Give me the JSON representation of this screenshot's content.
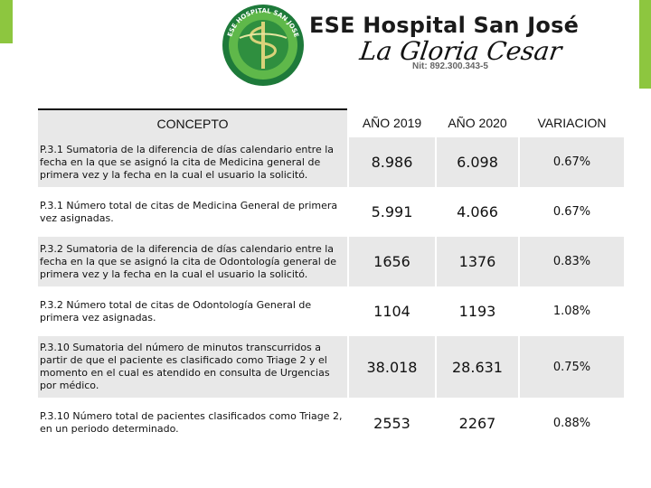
{
  "header": {
    "brand_title": "ESE Hospital San José",
    "brand_subtitle": "La Gloria Cesar",
    "nit": "Nit: 892.300.343-5",
    "seal_text": "ESE HOSPITAL SAN JOSE"
  },
  "colors": {
    "accent_green": "#8dc63f",
    "row_gray": "#e8e8e8"
  },
  "table": {
    "headers": {
      "concept": "CONCEPTO",
      "y2019": "AÑO 2019",
      "y2020": "AÑO 2020",
      "variation": "VARIACION"
    },
    "rows": [
      {
        "concept": "P.3.1 Sumatoria de la diferencia de días calendario entre la fecha en la que se asignó la cita de Medicina general de primera vez y la fecha en la cual el usuario la solicitó.",
        "y2019": "8.986",
        "y2020": "6.098",
        "variation": "0.67%"
      },
      {
        "concept": "P.3.1 Número total de citas de Medicina General de primera vez asignadas.",
        "y2019": "5.991",
        "y2020": "4.066",
        "variation": "0.67%"
      },
      {
        "concept": "P.3.2 Sumatoria de la diferencia de días calendario entre la fecha en la que se asignó la cita de Odontología general de primera vez y la fecha en la cual el usuario la solicitó.",
        "y2019": "1656",
        "y2020": "1376",
        "variation": "0.83%"
      },
      {
        "concept": "P.3.2 Número total de citas de Odontología General de primera vez asignadas.",
        "y2019": "1104",
        "y2020": "1193",
        "variation": "1.08%"
      },
      {
        "concept": "P.3.10 Sumatoria del número de minutos transcurridos a partir de que el paciente es clasificado como Triage 2 y el momento en el cual es atendido en consulta de Urgencias por médico.",
        "y2019": "38.018",
        "y2020": "28.631",
        "variation": "0.75%"
      },
      {
        "concept": "P.3.10 Número total de pacientes clasificados como Triage 2, en un periodo determinado.",
        "y2019": "2553",
        "y2020": "2267",
        "variation": "0.88%"
      }
    ]
  }
}
